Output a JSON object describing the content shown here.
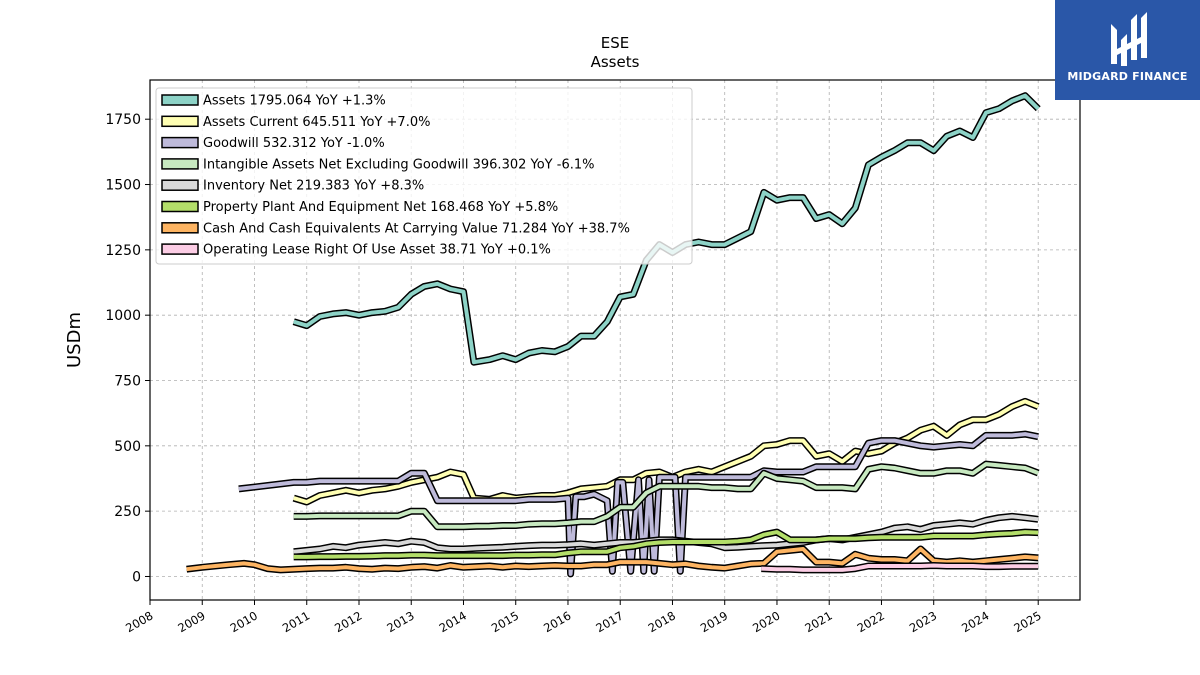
{
  "brand": {
    "name": "MIDGARD FINANCE",
    "bg_color": "#2a57a8"
  },
  "chart_data": {
    "type": "line",
    "title": "ESE",
    "subtitle": "Assets",
    "ylabel": "USDm",
    "xlabel": "",
    "xlim": [
      2008.0,
      2025.8
    ],
    "ylim": [
      -90,
      1900
    ],
    "grid": true,
    "legend_placement": "top-left",
    "x_ticks": [
      "2008",
      "2009",
      "2010",
      "2011",
      "2012",
      "2013",
      "2014",
      "2015",
      "2016",
      "2017",
      "2018",
      "2019",
      "2020",
      "2021",
      "2022",
      "2023",
      "2024",
      "2025"
    ],
    "y_ticks": [
      "0",
      "250",
      "500",
      "750",
      "1000",
      "1250",
      "1500",
      "1750"
    ],
    "series": [
      {
        "name": "Assets",
        "legend_label": "Assets  1795.064 YoY +1.3%",
        "color": "#8dd3c7",
        "x": [
          2010.75,
          2011.0,
          2011.25,
          2011.5,
          2011.75,
          2012.0,
          2012.25,
          2012.5,
          2012.75,
          2013.0,
          2013.25,
          2013.5,
          2013.75,
          2014.0,
          2014.2,
          2014.5,
          2014.75,
          2015.0,
          2015.25,
          2015.5,
          2015.75,
          2016.0,
          2016.25,
          2016.5,
          2016.75,
          2017.0,
          2017.25,
          2017.5,
          2017.75,
          2018.0,
          2018.25,
          2018.5,
          2018.75,
          2019.0,
          2019.25,
          2019.5,
          2019.75,
          2020.0,
          2020.25,
          2020.5,
          2020.75,
          2021.0,
          2021.25,
          2021.5,
          2021.75,
          2022.0,
          2022.25,
          2022.5,
          2022.75,
          2023.0,
          2023.25,
          2023.5,
          2023.75,
          2024.0,
          2024.25,
          2024.5,
          2024.75,
          2025.0
        ],
        "y": [
          975,
          960,
          995,
          1005,
          1010,
          1000,
          1010,
          1015,
          1030,
          1080,
          1110,
          1120,
          1100,
          1090,
          820,
          830,
          845,
          830,
          855,
          865,
          860,
          880,
          920,
          920,
          975,
          1070,
          1080,
          1210,
          1270,
          1240,
          1270,
          1280,
          1270,
          1270,
          1295,
          1320,
          1470,
          1440,
          1450,
          1450,
          1370,
          1385,
          1350,
          1410,
          1575,
          1605,
          1630,
          1660,
          1660,
          1630,
          1685,
          1705,
          1680,
          1775,
          1790,
          1820,
          1840,
          1790
        ]
      },
      {
        "name": "Assets Current",
        "legend_label": "Assets Current  645.511 YoY +7.0%",
        "color": "#ffffb3",
        "x": [
          2010.75,
          2011.0,
          2011.25,
          2011.5,
          2011.75,
          2012.0,
          2012.25,
          2012.5,
          2012.75,
          2013.0,
          2013.25,
          2013.5,
          2013.75,
          2014.0,
          2014.2,
          2014.5,
          2014.75,
          2015.0,
          2015.25,
          2015.5,
          2015.75,
          2016.0,
          2016.25,
          2016.5,
          2016.75,
          2017.0,
          2017.25,
          2017.5,
          2017.75,
          2018.0,
          2018.25,
          2018.5,
          2018.75,
          2019.0,
          2019.25,
          2019.5,
          2019.75,
          2020.0,
          2020.25,
          2020.5,
          2020.75,
          2021.0,
          2021.25,
          2021.5,
          2021.75,
          2022.0,
          2022.25,
          2022.5,
          2022.75,
          2023.0,
          2023.25,
          2023.5,
          2023.75,
          2024.0,
          2024.25,
          2024.5,
          2024.75,
          2025.0
        ],
        "y": [
          300,
          285,
          310,
          320,
          330,
          320,
          330,
          335,
          345,
          360,
          370,
          380,
          400,
          390,
          300,
          295,
          310,
          300,
          305,
          310,
          310,
          320,
          335,
          340,
          345,
          370,
          370,
          395,
          400,
          380,
          400,
          410,
          400,
          420,
          440,
          460,
          500,
          505,
          520,
          520,
          460,
          470,
          440,
          480,
          470,
          480,
          510,
          530,
          560,
          575,
          540,
          580,
          600,
          600,
          620,
          650,
          670,
          650
        ]
      },
      {
        "name": "Goodwill",
        "legend_label": "Goodwill  532.312 YoY -1.0%",
        "color": "#bebada",
        "x": [
          2009.7,
          2010.75,
          2011.0,
          2011.25,
          2011.5,
          2011.75,
          2012.0,
          2012.25,
          2012.5,
          2012.75,
          2013.0,
          2013.25,
          2013.5,
          2013.75,
          2014.0,
          2014.25,
          2014.5,
          2014.75,
          2015.0,
          2015.25,
          2015.5,
          2015.75,
          2016.0,
          2016.05,
          2016.15,
          2016.3,
          2016.5,
          2016.75,
          2016.85,
          2016.95,
          2017.05,
          2017.2,
          2017.35,
          2017.45,
          2017.55,
          2017.65,
          2017.75,
          2017.85,
          2017.95,
          2018.05,
          2018.15,
          2018.25,
          2018.5,
          2018.75,
          2019.0,
          2019.25,
          2019.5,
          2019.75,
          2020.0,
          2020.25,
          2020.5,
          2020.75,
          2021.0,
          2021.25,
          2021.5,
          2021.75,
          2022.0,
          2022.25,
          2022.5,
          2022.75,
          2023.0,
          2023.25,
          2023.5,
          2023.75,
          2024.0,
          2024.25,
          2024.5,
          2024.75,
          2025.0
        ],
        "y": [
          335,
          360,
          360,
          365,
          365,
          365,
          365,
          365,
          365,
          365,
          395,
          395,
          290,
          290,
          290,
          290,
          290,
          290,
          290,
          295,
          295,
          295,
          300,
          10,
          305,
          305,
          315,
          290,
          20,
          360,
          360,
          20,
          370,
          20,
          370,
          20,
          380,
          380,
          380,
          380,
          20,
          380,
          380,
          380,
          380,
          380,
          380,
          405,
          400,
          400,
          400,
          420,
          420,
          420,
          420,
          510,
          520,
          520,
          510,
          500,
          495,
          500,
          505,
          500,
          540,
          540,
          540,
          545,
          535
        ]
      },
      {
        "name": "Intangible Assets Net Excluding Goodwill",
        "legend_label": "Intangible Assets Net Excluding Goodwill  396.302 YoY -6.1%",
        "color": "#c7e9c0",
        "x": [
          2010.75,
          2011.0,
          2011.25,
          2011.5,
          2011.75,
          2012.0,
          2012.25,
          2012.5,
          2012.75,
          2013.0,
          2013.25,
          2013.5,
          2013.75,
          2014.0,
          2014.25,
          2014.5,
          2014.75,
          2015.0,
          2015.25,
          2015.5,
          2015.75,
          2016.0,
          2016.25,
          2016.5,
          2016.75,
          2017.0,
          2017.25,
          2017.5,
          2017.75,
          2018.0,
          2018.25,
          2018.5,
          2018.75,
          2019.0,
          2019.25,
          2019.5,
          2019.75,
          2020.0,
          2020.25,
          2020.5,
          2020.75,
          2021.0,
          2021.25,
          2021.5,
          2021.75,
          2022.0,
          2022.25,
          2022.5,
          2022.75,
          2023.0,
          2023.25,
          2023.5,
          2023.75,
          2024.0,
          2024.25,
          2024.5,
          2024.75,
          2025.0
        ],
        "y": [
          230,
          230,
          232,
          232,
          232,
          232,
          232,
          232,
          232,
          250,
          250,
          190,
          190,
          190,
          192,
          193,
          195,
          195,
          200,
          202,
          202,
          205,
          210,
          210,
          230,
          265,
          265,
          320,
          345,
          345,
          345,
          345,
          340,
          340,
          335,
          335,
          395,
          375,
          370,
          365,
          340,
          340,
          340,
          335,
          410,
          420,
          415,
          405,
          395,
          395,
          405,
          405,
          395,
          430,
          425,
          420,
          415,
          396
        ]
      },
      {
        "name": "Inventory Net",
        "legend_label": "Inventory Net  219.383 YoY +8.3%",
        "color": "#d9d9d9",
        "x": [
          2010.75,
          2011.0,
          2011.25,
          2011.5,
          2011.75,
          2012.0,
          2012.25,
          2012.5,
          2012.75,
          2013.0,
          2013.25,
          2013.5,
          2013.75,
          2014.0,
          2014.25,
          2014.5,
          2014.75,
          2015.0,
          2015.25,
          2015.5,
          2015.75,
          2016.0,
          2016.25,
          2016.5,
          2016.75,
          2017.0,
          2017.25,
          2017.5,
          2017.75,
          2018.0,
          2018.25,
          2018.5,
          2018.75,
          2019.0,
          2019.25,
          2019.5,
          2019.75,
          2020.0,
          2020.25,
          2020.5,
          2020.75,
          2021.0,
          2021.25,
          2021.5,
          2021.75,
          2022.0,
          2022.25,
          2022.5,
          2022.75,
          2023.0,
          2023.25,
          2023.5,
          2023.75,
          2024.0,
          2024.25,
          2024.5,
          2024.75,
          2025.0
        ],
        "y": [
          95,
          100,
          105,
          115,
          110,
          120,
          125,
          130,
          125,
          135,
          130,
          110,
          105,
          105,
          108,
          110,
          112,
          115,
          118,
          120,
          120,
          122,
          125,
          120,
          125,
          130,
          130,
          135,
          140,
          140,
          135,
          130,
          125,
          110,
          112,
          115,
          118,
          120,
          125,
          130,
          140,
          145,
          140,
          150,
          160,
          170,
          185,
          190,
          180,
          195,
          200,
          205,
          200,
          215,
          225,
          230,
          225,
          219
        ]
      },
      {
        "name": "Property Plant And Equipment Net",
        "legend_label": "Property Plant And Equipment Net  168.468 YoY +5.8%",
        "color": "#b3de69",
        "x": [
          2010.75,
          2011.0,
          2011.25,
          2011.5,
          2011.75,
          2012.0,
          2012.25,
          2012.5,
          2012.75,
          2013.0,
          2013.25,
          2013.5,
          2013.75,
          2014.0,
          2014.25,
          2014.5,
          2014.75,
          2015.0,
          2015.25,
          2015.5,
          2015.75,
          2016.0,
          2016.25,
          2016.5,
          2016.75,
          2017.0,
          2017.25,
          2017.5,
          2017.75,
          2018.0,
          2018.25,
          2018.5,
          2018.75,
          2019.0,
          2019.25,
          2019.5,
          2019.75,
          2020.0,
          2020.25,
          2020.5,
          2020.75,
          2021.0,
          2021.25,
          2021.5,
          2021.75,
          2022.0,
          2022.25,
          2022.5,
          2022.75,
          2023.0,
          2023.25,
          2023.5,
          2023.75,
          2024.0,
          2024.25,
          2024.5,
          2024.75,
          2025.0
        ],
        "y": [
          75,
          75,
          76,
          76,
          77,
          77,
          78,
          80,
          80,
          82,
          82,
          80,
          80,
          80,
          80,
          80,
          80,
          82,
          82,
          83,
          83,
          90,
          95,
          95,
          95,
          110,
          115,
          125,
          130,
          132,
          132,
          132,
          132,
          132,
          135,
          140,
          160,
          170,
          140,
          140,
          140,
          145,
          145,
          145,
          148,
          150,
          150,
          150,
          150,
          155,
          155,
          155,
          155,
          160,
          163,
          165,
          170,
          168
        ]
      },
      {
        "name": "Cash And Cash Equivalents At Carrying Value",
        "legend_label": "Cash And Cash Equivalents At Carrying Value  71.284 YoY +38.7%",
        "color": "#fdb462",
        "x": [
          2008.7,
          2009.0,
          2009.5,
          2009.8,
          2010.0,
          2010.25,
          2010.5,
          2010.75,
          2011.0,
          2011.25,
          2011.5,
          2011.75,
          2012.0,
          2012.25,
          2012.5,
          2012.75,
          2013.0,
          2013.25,
          2013.5,
          2013.75,
          2014.0,
          2014.25,
          2014.5,
          2014.75,
          2015.0,
          2015.25,
          2015.5,
          2015.75,
          2016.0,
          2016.25,
          2016.5,
          2016.75,
          2017.0,
          2017.25,
          2017.5,
          2017.75,
          2018.0,
          2018.25,
          2018.5,
          2018.75,
          2019.0,
          2019.25,
          2019.5,
          2019.75,
          2020.0,
          2020.25,
          2020.5,
          2020.75,
          2021.0,
          2021.25,
          2021.5,
          2021.75,
          2022.0,
          2022.25,
          2022.5,
          2022.75,
          2023.0,
          2023.25,
          2023.5,
          2023.75,
          2024.0,
          2024.25,
          2024.5,
          2024.75,
          2025.0
        ],
        "y": [
          28,
          35,
          45,
          50,
          45,
          30,
          25,
          28,
          30,
          32,
          32,
          35,
          30,
          28,
          32,
          30,
          35,
          38,
          32,
          42,
          35,
          38,
          40,
          35,
          40,
          38,
          40,
          42,
          40,
          40,
          45,
          45,
          55,
          55,
          55,
          50,
          45,
          48,
          40,
          35,
          32,
          40,
          48,
          50,
          95,
          100,
          105,
          55,
          55,
          50,
          85,
          70,
          65,
          65,
          60,
          105,
          60,
          55,
          60,
          55,
          60,
          65,
          70,
          75,
          71
        ]
      },
      {
        "name": "Operating Lease Right Of Use Asset",
        "legend_label": "Operating Lease Right Of Use Asset  38.71 YoY +0.1%",
        "color": "#fccde5",
        "x": [
          2019.7,
          2020.0,
          2020.25,
          2020.5,
          2020.75,
          2021.0,
          2021.25,
          2021.5,
          2021.75,
          2022.0,
          2022.25,
          2022.5,
          2022.75,
          2023.0,
          2023.25,
          2023.5,
          2023.75,
          2024.0,
          2024.25,
          2024.5,
          2024.75,
          2025.0
        ],
        "y": [
          30,
          28,
          28,
          25,
          25,
          25,
          25,
          30,
          40,
          40,
          40,
          40,
          40,
          42,
          40,
          40,
          40,
          38,
          38,
          39,
          39,
          39
        ]
      }
    ]
  }
}
